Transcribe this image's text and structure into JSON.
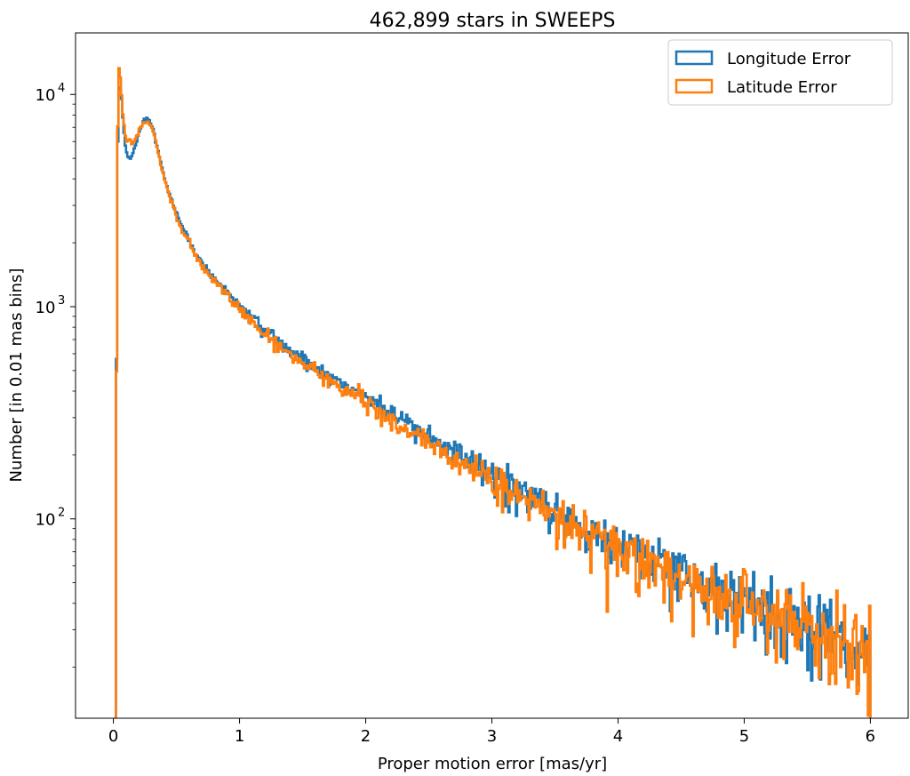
{
  "chart_data": {
    "type": "line",
    "style": "step-histogram",
    "title": "462,899 stars in SWEEPS",
    "xlabel": "Proper motion error [mas/yr]",
    "ylabel": "Number [in 0.01 mas bins]",
    "xlim": [
      -0.3,
      6.3
    ],
    "ylim": [
      11.5,
      19500
    ],
    "yscale": "log",
    "bin_width": 0.01,
    "x_ticks": [
      {
        "value": 0,
        "label": "0"
      },
      {
        "value": 1,
        "label": "1"
      },
      {
        "value": 2,
        "label": "2"
      },
      {
        "value": 3,
        "label": "3"
      },
      {
        "value": 4,
        "label": "4"
      },
      {
        "value": 5,
        "label": "5"
      },
      {
        "value": 6,
        "label": "6"
      }
    ],
    "y_ticks": [
      {
        "value": 100,
        "base": "10",
        "exp": "2"
      },
      {
        "value": 1000,
        "base": "10",
        "exp": "3"
      },
      {
        "value": 10000,
        "base": "10",
        "exp": "4"
      }
    ],
    "grid": false,
    "legend": "top-right",
    "series": [
      {
        "name": "Longitude Error",
        "color": "#1f77b4",
        "x": [
          0.02,
          0.03,
          0.04,
          0.05,
          0.06,
          0.08,
          0.1,
          0.13,
          0.16,
          0.2,
          0.24,
          0.28,
          0.32,
          0.36,
          0.4,
          0.45,
          0.5,
          0.6,
          0.7,
          0.8,
          0.9,
          1.0,
          1.2,
          1.4,
          1.6,
          1.8,
          2.0,
          2.25,
          2.5,
          2.75,
          3.0,
          3.25,
          3.5,
          3.75,
          4.0,
          4.25,
          4.5,
          4.75,
          5.0,
          5.25,
          5.5,
          5.75,
          5.9,
          5.99
        ],
        "y": [
          75,
          3800,
          9500,
          11500,
          10500,
          7000,
          5400,
          4900,
          5200,
          6500,
          7600,
          7700,
          6700,
          5200,
          4100,
          3300,
          2700,
          2050,
          1600,
          1350,
          1180,
          1000,
          780,
          620,
          520,
          440,
          380,
          300,
          240,
          195,
          160,
          130,
          110,
          90,
          75,
          65,
          56,
          48,
          41,
          36,
          32,
          28,
          25,
          22
        ]
      },
      {
        "name": "Latitude Error",
        "color": "#ff7f0e",
        "x": [
          0.02,
          0.03,
          0.04,
          0.05,
          0.06,
          0.08,
          0.1,
          0.13,
          0.16,
          0.2,
          0.24,
          0.28,
          0.32,
          0.36,
          0.4,
          0.45,
          0.5,
          0.6,
          0.7,
          0.8,
          0.9,
          1.0,
          1.2,
          1.4,
          1.6,
          1.8,
          2.0,
          2.25,
          2.5,
          2.75,
          3.0,
          3.25,
          3.5,
          3.75,
          4.0,
          4.25,
          4.5,
          4.75,
          5.0,
          5.25,
          5.5,
          5.75,
          5.9,
          5.99
        ],
        "y": [
          60,
          3900,
          13500,
          13000,
          11000,
          7500,
          6000,
          6100,
          5900,
          6700,
          7400,
          7500,
          6600,
          5100,
          4000,
          3250,
          2650,
          2000,
          1580,
          1320,
          1150,
          960,
          740,
          590,
          490,
          415,
          355,
          280,
          225,
          182,
          150,
          123,
          104,
          86,
          72,
          62,
          53,
          46,
          39,
          35,
          31,
          27,
          24,
          22
        ]
      }
    ]
  }
}
